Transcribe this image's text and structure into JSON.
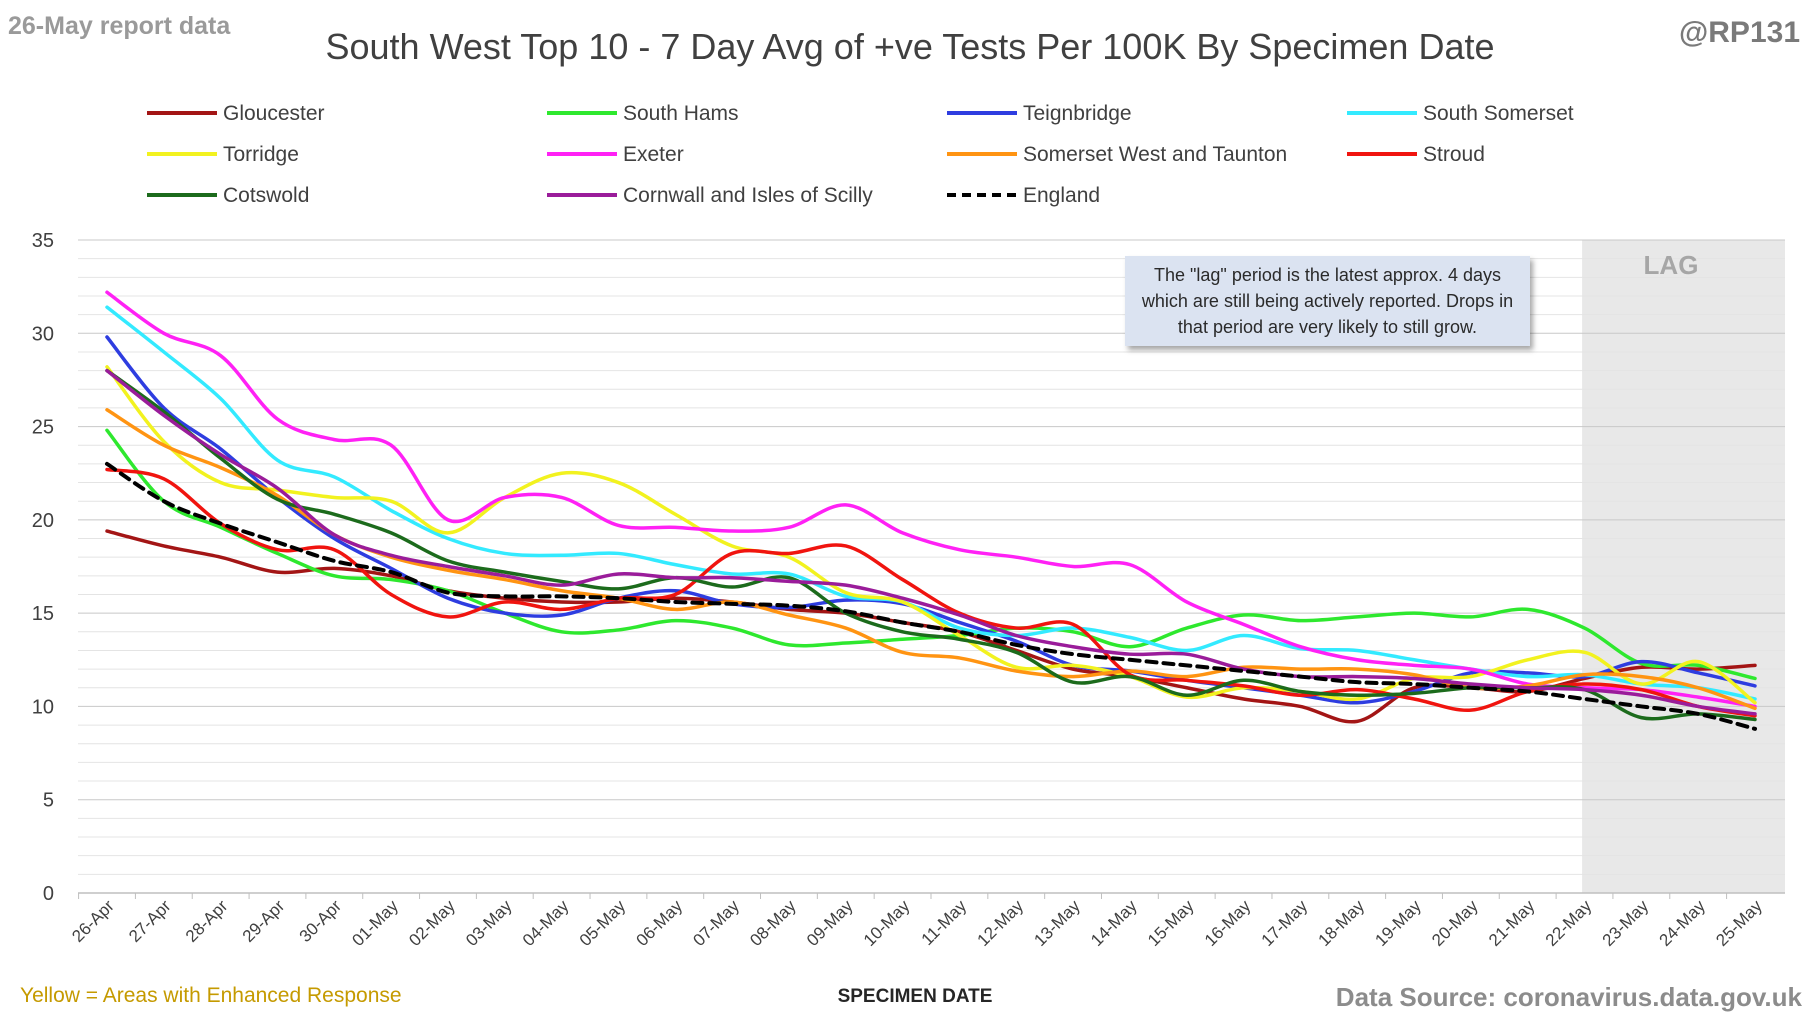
{
  "header": {
    "report_date": "26-May report data",
    "handle": "@RP131",
    "title": "South West Top 10 - 7 Day Avg of +ve Tests Per 100K By Specimen Date"
  },
  "footer": {
    "note": "Yellow = Areas with Enhanced Response",
    "source": "Data Source: coronavirus.data.gov.uk"
  },
  "annotation": {
    "text": "The \"lag\" period is the latest approx. 4 days which are still being actively reported.  Drops in that period are very likely to still grow."
  },
  "lag_label": "LAG",
  "chart_data": {
    "type": "line",
    "title": "South West Top 10 - 7 Day Avg of +ve Tests Per 100K By Specimen Date",
    "xlabel": "SPECIMEN DATE",
    "ylabel": "",
    "ylim": [
      0,
      35
    ],
    "yticks": [
      0,
      5,
      10,
      15,
      20,
      25,
      30,
      35
    ],
    "grid": true,
    "legend_position": "top",
    "lag_start": "22-May",
    "categories": [
      "26-Apr",
      "27-Apr",
      "28-Apr",
      "29-Apr",
      "30-Apr",
      "01-May",
      "02-May",
      "03-May",
      "04-May",
      "05-May",
      "06-May",
      "07-May",
      "08-May",
      "09-May",
      "10-May",
      "11-May",
      "12-May",
      "13-May",
      "14-May",
      "15-May",
      "16-May",
      "17-May",
      "18-May",
      "19-May",
      "20-May",
      "21-May",
      "22-May",
      "23-May",
      "24-May",
      "25-May"
    ],
    "series": [
      {
        "name": "Gloucester",
        "color": "#a31515",
        "dash": false,
        "values": [
          19.4,
          18.6,
          18.0,
          17.2,
          17.4,
          17.0,
          16.2,
          15.8,
          15.6,
          15.6,
          15.8,
          15.6,
          15.2,
          15.0,
          14.5,
          14.0,
          13.0,
          12.0,
          11.6,
          11.0,
          10.4,
          10.0,
          9.2,
          11.0,
          11.0,
          10.8,
          11.5,
          12.1,
          12.0,
          12.2
        ]
      },
      {
        "name": "South Hams",
        "color": "#2ee82e",
        "dash": false,
        "values": [
          24.8,
          21.0,
          19.6,
          18.2,
          17.0,
          16.8,
          16.2,
          15.0,
          14.0,
          14.1,
          14.6,
          14.2,
          13.3,
          13.4,
          13.6,
          13.8,
          14.2,
          14.0,
          13.2,
          14.2,
          14.9,
          14.6,
          14.8,
          15.0,
          14.8,
          15.2,
          14.2,
          12.3,
          12.2,
          11.5
        ]
      },
      {
        "name": "Teignbridge",
        "color": "#2e3de0",
        "dash": false,
        "values": [
          29.8,
          26.0,
          23.8,
          21.2,
          19.0,
          17.4,
          15.8,
          15.0,
          14.9,
          15.8,
          16.2,
          15.5,
          15.3,
          15.7,
          15.5,
          14.5,
          13.5,
          12.2,
          11.9,
          11.4,
          11.0,
          10.6,
          10.2,
          10.8,
          11.8,
          11.8,
          11.6,
          12.4,
          11.8,
          11.1
        ]
      },
      {
        "name": "South Somerset",
        "color": "#33eaff",
        "dash": false,
        "values": [
          31.4,
          29.0,
          26.5,
          23.2,
          22.3,
          20.5,
          19.0,
          18.2,
          18.1,
          18.2,
          17.6,
          17.1,
          17.1,
          15.9,
          15.6,
          14.2,
          13.8,
          14.2,
          13.7,
          13.0,
          13.8,
          13.1,
          13.0,
          12.5,
          12.0,
          11.6,
          11.7,
          11.2,
          11.0,
          10.4
        ]
      },
      {
        "name": "Torridge",
        "color": "#f2f21f",
        "dash": false,
        "values": [
          28.2,
          24.2,
          22.0,
          21.6,
          21.2,
          21.0,
          19.3,
          21.2,
          22.5,
          22.0,
          20.3,
          18.6,
          18.0,
          16.1,
          15.6,
          13.8,
          12.1,
          12.2,
          11.6,
          10.5,
          11.0,
          10.8,
          10.4,
          11.5,
          11.6,
          12.5,
          12.9,
          11.2,
          12.4,
          10.2
        ]
      },
      {
        "name": "Exeter",
        "color": "#ff21f5",
        "dash": false,
        "values": [
          32.2,
          30.0,
          28.8,
          25.4,
          24.3,
          24.0,
          20.0,
          21.2,
          21.2,
          19.7,
          19.6,
          19.4,
          19.6,
          20.8,
          19.3,
          18.4,
          18.0,
          17.5,
          17.6,
          15.6,
          14.4,
          13.2,
          12.5,
          12.2,
          12.0,
          11.2,
          11.0,
          10.9,
          10.5,
          10.0
        ]
      },
      {
        "name": "Somerset West and Taunton",
        "color": "#ff9412",
        "dash": false,
        "values": [
          25.9,
          24.0,
          22.8,
          21.3,
          19.2,
          18.0,
          17.3,
          16.8,
          16.2,
          15.8,
          15.2,
          15.6,
          14.9,
          14.2,
          12.9,
          12.6,
          11.9,
          11.6,
          11.9,
          11.6,
          12.1,
          12.0,
          12.0,
          11.7,
          11.0,
          11.1,
          11.7,
          11.6,
          11.0,
          9.9
        ]
      },
      {
        "name": "Stroud",
        "color": "#f0140f",
        "dash": false,
        "values": [
          22.7,
          22.2,
          19.8,
          18.4,
          18.4,
          16.0,
          14.8,
          15.6,
          15.2,
          15.8,
          16.0,
          18.2,
          18.2,
          18.6,
          16.8,
          15.0,
          14.2,
          14.4,
          11.7,
          11.4,
          11.1,
          10.6,
          10.9,
          10.4,
          9.8,
          10.8,
          11.2,
          10.9,
          10.0,
          9.5
        ]
      },
      {
        "name": "Cotswold",
        "color": "#1c6b1c",
        "dash": false,
        "values": [
          28.0,
          25.8,
          23.3,
          21.1,
          20.3,
          19.3,
          17.8,
          17.2,
          16.7,
          16.3,
          16.9,
          16.4,
          16.9,
          15.0,
          14.0,
          13.6,
          12.9,
          11.3,
          11.6,
          10.6,
          11.4,
          10.8,
          10.6,
          10.7,
          11.0,
          11.0,
          10.9,
          9.4,
          9.6,
          9.3
        ]
      },
      {
        "name": "Cornwall and Isles of Scilly",
        "color": "#9a1c9a",
        "dash": false,
        "values": [
          28.0,
          25.6,
          23.5,
          21.7,
          19.2,
          18.1,
          17.5,
          17.0,
          16.5,
          17.1,
          16.9,
          16.9,
          16.7,
          16.5,
          15.8,
          14.9,
          13.8,
          13.2,
          12.8,
          12.8,
          12.0,
          11.6,
          11.6,
          11.5,
          11.2,
          11.0,
          10.9,
          10.6,
          10.0,
          9.6
        ]
      },
      {
        "name": "England",
        "color": "#000000",
        "dash": true,
        "values": [
          23.0,
          21.0,
          19.8,
          18.8,
          17.8,
          17.2,
          16.1,
          15.9,
          15.9,
          15.8,
          15.6,
          15.5,
          15.4,
          15.1,
          14.5,
          14.0,
          13.3,
          12.8,
          12.5,
          12.2,
          11.9,
          11.6,
          11.3,
          11.2,
          11.0,
          10.8,
          10.4,
          10.0,
          9.6,
          8.8
        ]
      }
    ]
  }
}
